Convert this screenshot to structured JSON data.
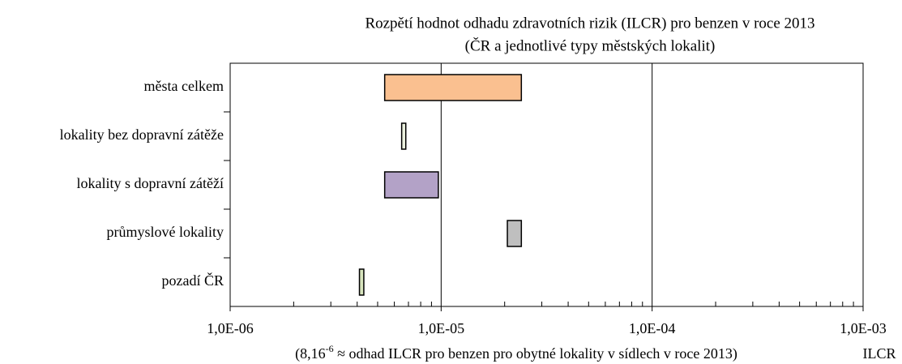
{
  "chart_data": {
    "type": "floating-bar",
    "title": [
      "Rozpětí hodnot odhadu zdravotních rizik (ILCR) pro benzen v roce 2013",
      "(ČR a  jednotlivé typy městských lokalit)"
    ],
    "categories": [
      "města celkem",
      "lokality bez dopravní zátěže",
      "lokality s dopravní zátěží",
      "průmyslové lokality",
      "pozadí ČR"
    ],
    "low": [
      5.4e-06,
      6.5e-06,
      5.4e-06,
      2.06e-05,
      4.1e-06
    ],
    "high": [
      2.4e-05,
      6.8e-06,
      9.7e-06,
      2.4e-05,
      4.3e-06
    ],
    "colors": [
      "#fac090",
      "#ebf1de",
      "#b3a2c7",
      "#bfbfbf",
      "#d7e4bd"
    ],
    "xlim": [
      1e-06,
      0.001
    ],
    "log_x": true,
    "grid": true,
    "xticks": [
      {
        "value": 1e-06,
        "label": "1,0E-06"
      },
      {
        "value": 1e-05,
        "label": "1,0E-05"
      },
      {
        "value": 0.0001,
        "label": "1,0E-04"
      },
      {
        "value": 0.001,
        "label": "1,0E-03"
      }
    ],
    "note": [
      "(8,16",
      "-6",
      " ≈ odhad ILCR pro benzen pro obytné lokality v sídlech v roce 2013)"
    ],
    "x_label": "ILCR"
  }
}
